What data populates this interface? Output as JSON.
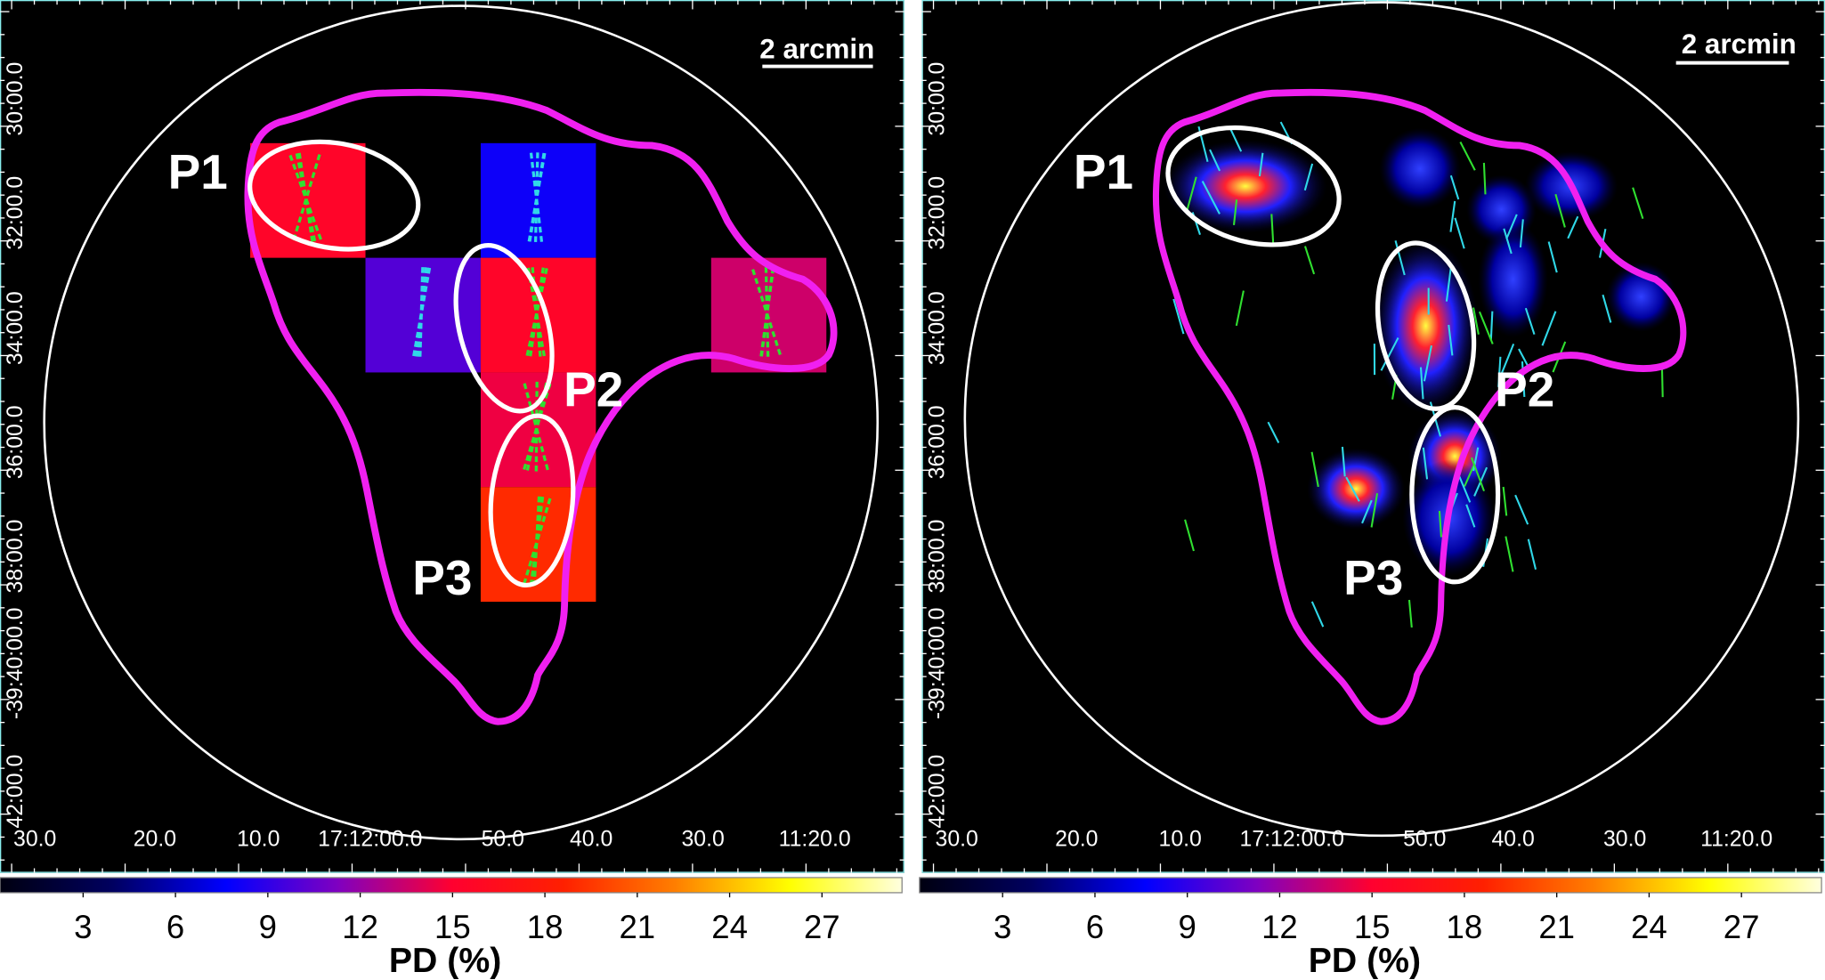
{
  "panels": [
    {
      "scale_bar": "2 arcmin",
      "regions": [
        "P1",
        "P2",
        "P3"
      ],
      "x_tick_labels": [
        "30.0",
        "20.0",
        "10.0",
        "17:12:00.0",
        "50.0",
        "40.0",
        "30.0",
        "11:20.0"
      ],
      "y_tick_labels": [
        "30:00.0",
        "32:00.0",
        "34:00.0",
        "36:00.0",
        "38:00.0",
        "-39:40:00.0",
        "42:00.0"
      ],
      "pd_map": [
        [
          15.5,
          null,
          8,
          null,
          null
        ],
        [
          null,
          10,
          15.5,
          null,
          13.5
        ],
        [
          null,
          null,
          14.5,
          null,
          null
        ],
        [
          null,
          null,
          19,
          null,
          null
        ]
      ],
      "colorbar": {
        "label": "PD (%)",
        "clim": [
          0.3,
          29.6
        ],
        "ticks": [
          3,
          6,
          9,
          12,
          15,
          18,
          21,
          24,
          27
        ],
        "colormap": [
          "#000010",
          "#000060",
          "#0000ff",
          "#8000c0",
          "#ff0030",
          "#ff2000",
          "#ff8000",
          "#ffff00",
          "#ffffe0"
        ]
      }
    },
    {
      "scale_bar": "2 arcmin",
      "regions": [
        "P1",
        "P2",
        "P3"
      ],
      "x_tick_labels": [
        "30.0",
        "20.0",
        "10.0",
        "17:12:00.0",
        "50.0",
        "40.0",
        "30.0",
        "11:20.0"
      ],
      "y_tick_labels": [
        "30:00.0",
        "32:00.0",
        "34:00.0",
        "36:00.0",
        "38:00.0",
        "-39:40:00.0",
        "42:00.0"
      ],
      "colorbar": {
        "label": "PD (%)",
        "clim": [
          0.3,
          29.6
        ],
        "ticks": [
          3,
          6,
          9,
          12,
          15,
          18,
          21,
          24,
          27
        ],
        "colormap": [
          "#000010",
          "#000060",
          "#0000ff",
          "#8000c0",
          "#ff0030",
          "#ff2000",
          "#ff8000",
          "#ffff00",
          "#ffffe0"
        ]
      }
    }
  ]
}
